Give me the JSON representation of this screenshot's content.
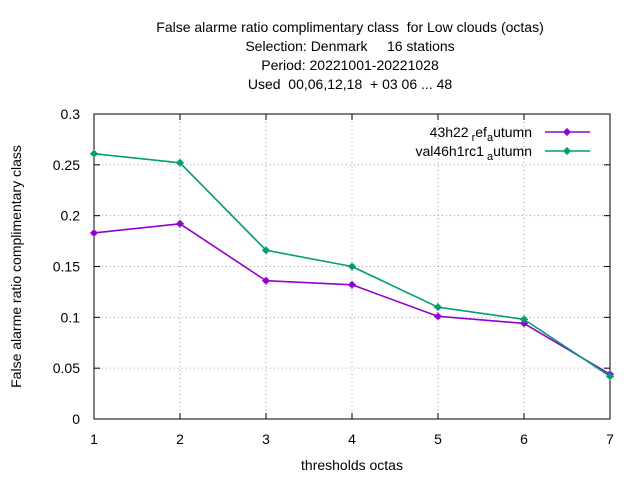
{
  "chart_data": {
    "type": "line",
    "title_lines": [
      "False alarme ratio complimentary class  for Low clouds (octas)",
      "Selection: Denmark     16 stations",
      "Period: 20221001-20221028",
      "Used  00,06,12,18  + 03 06 ... 48"
    ],
    "xlabel": "thresholds octas",
    "ylabel": "False alarme ratio complimentary class",
    "x": [
      1,
      2,
      3,
      4,
      5,
      6,
      7
    ],
    "xlim": [
      1,
      7
    ],
    "ylim": [
      0,
      0.3
    ],
    "x_ticks": [
      "1",
      "2",
      "3",
      "4",
      "5",
      "6",
      "7"
    ],
    "y_ticks": [
      "0",
      "0.05",
      "0.1",
      "0.15",
      "0.2",
      "0.25",
      "0.3"
    ],
    "grid": true,
    "legend_position": "top-right",
    "series": [
      {
        "name": "43h22_ref_autumn",
        "legend_parts": [
          "43h22",
          "r",
          "ef",
          "a",
          "utumn"
        ],
        "color": "#9400d3",
        "values": [
          0.183,
          0.192,
          0.136,
          0.132,
          0.101,
          0.094,
          0.044
        ]
      },
      {
        "name": "val46h1rc1_autumn",
        "legend_parts": [
          "val46h1rc1",
          "a",
          "utumn"
        ],
        "color": "#009e73",
        "values": [
          0.261,
          0.252,
          0.166,
          0.15,
          0.11,
          0.098,
          0.042
        ]
      }
    ]
  }
}
